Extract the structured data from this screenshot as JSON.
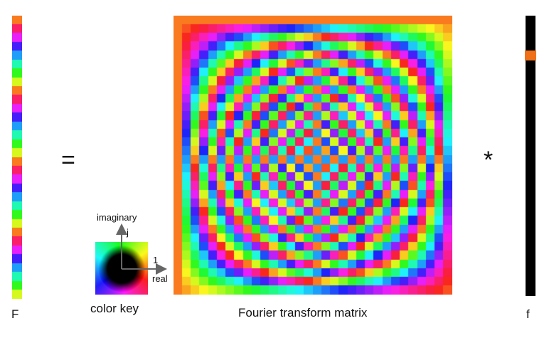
{
  "labels": {
    "output_vector": "F",
    "input_vector": "f",
    "matrix": "Fourier transform matrix",
    "color_key": "color key",
    "equals": "=",
    "multiply": "*"
  },
  "color_key": {
    "imaginary_axis": "imaginary",
    "imaginary_unit": "j",
    "real_axis": "real",
    "real_unit": "1"
  },
  "dft": {
    "N": 32,
    "input_impulse_index": 4
  },
  "colors": {
    "impulse": "#f07018",
    "background": "#000000"
  }
}
